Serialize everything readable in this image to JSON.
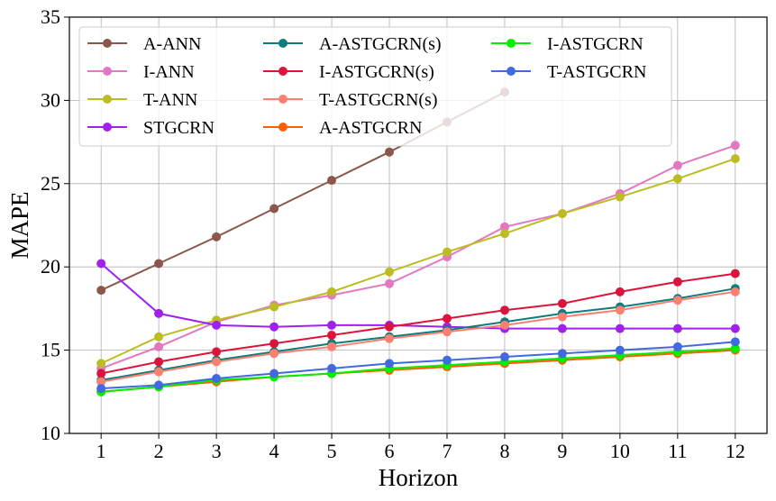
{
  "chart_data": {
    "type": "line",
    "title": "",
    "xlabel": "Horizon",
    "ylabel": "MAPE",
    "xlim": [
      0.45,
      12.55
    ],
    "ylim": [
      10,
      35
    ],
    "x": [
      1,
      2,
      3,
      4,
      5,
      6,
      7,
      8,
      9,
      10,
      11,
      12
    ],
    "x_ticks": [
      "1",
      "2",
      "3",
      "4",
      "5",
      "6",
      "7",
      "8",
      "9",
      "10",
      "11",
      "12"
    ],
    "y_ticks": [
      "10",
      "15",
      "20",
      "25",
      "30",
      "35"
    ],
    "grid": true,
    "legend_position": "top-left",
    "legend_columns": 3,
    "series": [
      {
        "name": "A-ANN",
        "color": "#8c564b",
        "values": [
          18.6,
          20.2,
          21.8,
          23.5,
          25.2,
          26.9,
          28.7,
          30.5,
          null,
          null,
          null,
          null
        ]
      },
      {
        "name": "I-ANN",
        "color": "#e377c2",
        "values": [
          13.9,
          15.2,
          16.7,
          17.7,
          18.3,
          19.0,
          20.6,
          22.4,
          23.2,
          24.4,
          26.1,
          27.3
        ]
      },
      {
        "name": "T-ANN",
        "color": "#bcbd22",
        "values": [
          14.2,
          15.8,
          16.8,
          17.6,
          18.5,
          19.7,
          20.9,
          22.0,
          23.2,
          24.2,
          25.3,
          26.5
        ]
      },
      {
        "name": "STGCRN",
        "color": "#a020f0",
        "values": [
          20.2,
          17.2,
          16.5,
          16.4,
          16.5,
          16.5,
          16.4,
          16.3,
          16.3,
          16.3,
          16.3,
          16.3
        ]
      },
      {
        "name": "A-ASTGCRN(s)",
        "color": "#0e7c7b",
        "values": [
          13.2,
          13.8,
          14.4,
          14.9,
          15.4,
          15.8,
          16.2,
          16.7,
          17.2,
          17.6,
          18.1,
          18.7
        ]
      },
      {
        "name": "I-ASTGCRN(s)",
        "color": "#dc143c",
        "values": [
          13.6,
          14.3,
          14.9,
          15.4,
          15.9,
          16.4,
          16.9,
          17.4,
          17.8,
          18.5,
          19.1,
          19.6
        ]
      },
      {
        "name": "T-ASTGCRN(s)",
        "color": "#fa8072",
        "values": [
          13.1,
          13.7,
          14.3,
          14.8,
          15.2,
          15.7,
          16.1,
          16.5,
          17.0,
          17.4,
          18.0,
          18.5
        ]
      },
      {
        "name": "A-ASTGCRN",
        "color": "#ff5f00",
        "values": [
          12.5,
          12.8,
          13.1,
          13.4,
          13.6,
          13.8,
          14.0,
          14.2,
          14.4,
          14.6,
          14.8,
          15.0
        ]
      },
      {
        "name": "I-ASTGCRN",
        "color": "#00ee00",
        "values": [
          12.5,
          12.8,
          13.2,
          13.4,
          13.6,
          13.9,
          14.1,
          14.3,
          14.5,
          14.7,
          14.9,
          15.1
        ]
      },
      {
        "name": "T-ASTGCRN",
        "color": "#4169e1",
        "values": [
          12.7,
          12.9,
          13.3,
          13.6,
          13.9,
          14.2,
          14.4,
          14.6,
          14.8,
          15.0,
          15.2,
          15.5
        ]
      }
    ]
  }
}
